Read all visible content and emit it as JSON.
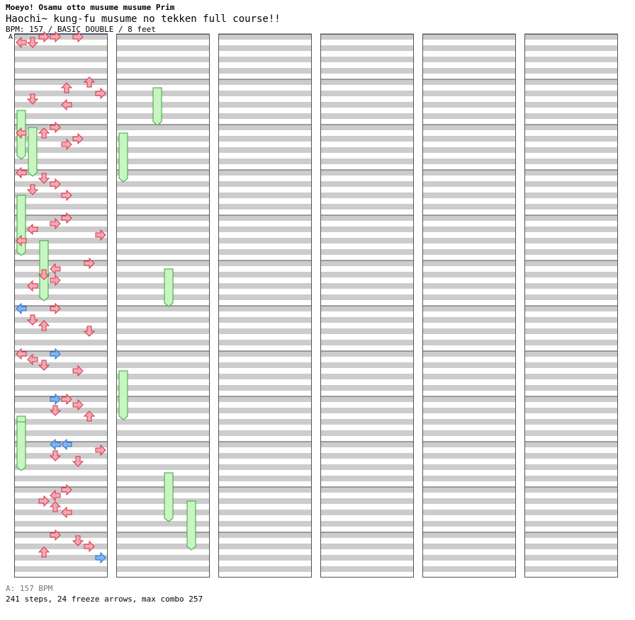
{
  "header": {
    "title": "Moeyo! Osamu otto musume musume Prim",
    "subtitle": "Haochi~ kung-fu musume no tekken full course!!",
    "info": "BPM: 157 / BASIC DOUBLE / 8 feet"
  },
  "bpm_marker": "A",
  "footer": {
    "bpm": "A: 157 BPM",
    "stats": "241 steps, 24 freeze arrows, max combo 257"
  },
  "colors": {
    "quarter": "#f7a8b2",
    "quarter_border": "#d03246",
    "eighth": "#7fb6f2",
    "eighth_border": "#2a6ccf",
    "freeze": "#c8f5c2",
    "freeze_border": "#36a53a",
    "stripe": "#cccccc",
    "grid": "#555555"
  },
  "chart_data": {
    "type": "step-chart",
    "columns": 6,
    "measures_per_column": 12,
    "lanes_per_column": 8,
    "steps_per_measure": 8,
    "lane_directions": [
      "left",
      "down",
      "up",
      "right",
      "left",
      "down",
      "up",
      "right"
    ],
    "notes": [
      [
        0,
        0,
        2,
        "right",
        "q"
      ],
      [
        0,
        0,
        3,
        "right",
        "q"
      ],
      [
        0,
        0,
        5,
        "right",
        "q"
      ],
      [
        0,
        1,
        0,
        "left",
        "q"
      ],
      [
        0,
        1,
        1,
        "down",
        "q"
      ],
      [
        1,
        0,
        6,
        "up",
        "q"
      ],
      [
        1,
        1,
        4,
        "up",
        "q"
      ],
      [
        1,
        2,
        7,
        "right",
        "q"
      ],
      [
        1,
        3,
        1,
        "down",
        "q"
      ],
      [
        1,
        4,
        4,
        "left",
        "q"
      ],
      [
        2,
        0,
        3,
        "right",
        "q"
      ],
      [
        2,
        1,
        0,
        "left",
        "q"
      ],
      [
        2,
        1,
        2,
        "up",
        "q"
      ],
      [
        2,
        2,
        5,
        "right",
        "q"
      ],
      [
        2,
        3,
        4,
        "right",
        "q"
      ],
      [
        3,
        0,
        0,
        "left",
        "q"
      ],
      [
        3,
        1,
        2,
        "down",
        "q"
      ],
      [
        3,
        2,
        3,
        "right",
        "q"
      ],
      [
        3,
        3,
        1,
        "down",
        "q"
      ],
      [
        3,
        4,
        4,
        "right",
        "q"
      ],
      [
        4,
        0,
        4,
        "right",
        "q"
      ],
      [
        4,
        1,
        3,
        "right",
        "q"
      ],
      [
        4,
        2,
        1,
        "left",
        "q"
      ],
      [
        4,
        3,
        7,
        "right",
        "q"
      ],
      [
        4,
        4,
        0,
        "left",
        "q"
      ],
      [
        5,
        0,
        6,
        "right",
        "q"
      ],
      [
        5,
        1,
        3,
        "left",
        "q"
      ],
      [
        5,
        2,
        2,
        "down",
        "q"
      ],
      [
        5,
        3,
        3,
        "right",
        "q"
      ],
      [
        5,
        4,
        1,
        "left",
        "q"
      ],
      [
        6,
        0,
        0,
        "left",
        "e"
      ],
      [
        6,
        0,
        3,
        "right",
        "q"
      ],
      [
        6,
        2,
        1,
        "down",
        "q"
      ],
      [
        6,
        3,
        2,
        "up",
        "q"
      ],
      [
        6,
        4,
        6,
        "down",
        "q"
      ],
      [
        7,
        0,
        0,
        "left",
        "q"
      ],
      [
        7,
        0,
        3,
        "right",
        "e"
      ],
      [
        7,
        1,
        1,
        "left",
        "q"
      ],
      [
        7,
        2,
        2,
        "down",
        "q"
      ],
      [
        7,
        3,
        5,
        "right",
        "q"
      ],
      [
        8,
        0,
        3,
        "right",
        "e"
      ],
      [
        8,
        0,
        4,
        "right",
        "q"
      ],
      [
        8,
        1,
        5,
        "right",
        "q"
      ],
      [
        8,
        2,
        3,
        "down",
        "q"
      ],
      [
        8,
        3,
        6,
        "up",
        "q"
      ],
      [
        9,
        0,
        3,
        "left",
        "e"
      ],
      [
        9,
        0,
        4,
        "left",
        "e"
      ],
      [
        9,
        1,
        7,
        "right",
        "q"
      ],
      [
        9,
        2,
        3,
        "down",
        "q"
      ],
      [
        9,
        3,
        5,
        "down",
        "q"
      ],
      [
        10,
        0,
        4,
        "right",
        "q"
      ],
      [
        10,
        1,
        3,
        "left",
        "q"
      ],
      [
        10,
        2,
        2,
        "right",
        "q"
      ],
      [
        10,
        3,
        3,
        "up",
        "q"
      ],
      [
        10,
        4,
        4,
        "left",
        "q"
      ],
      [
        11,
        0,
        3,
        "right",
        "q"
      ],
      [
        11,
        1,
        5,
        "down",
        "q"
      ],
      [
        11,
        2,
        6,
        "right",
        "q"
      ],
      [
        11,
        3,
        2,
        "up",
        "q"
      ],
      [
        11,
        4,
        7,
        "right",
        "e"
      ]
    ],
    "freezes": [
      [
        1,
        5,
        0,
        4,
        "q"
      ],
      [
        2,
        0,
        1,
        4,
        "q"
      ],
      [
        3,
        4,
        0,
        5,
        "q"
      ],
      [
        4,
        4,
        2,
        5,
        "q"
      ],
      [
        8,
        3,
        0,
        4,
        "q"
      ],
      [
        8,
        4,
        0,
        4,
        "q"
      ],
      [
        13,
        1,
        3,
        3,
        "q"
      ],
      [
        14,
        1,
        0,
        4,
        "q"
      ],
      [
        17,
        1,
        4,
        3,
        "q"
      ],
      [
        19,
        3,
        0,
        4,
        "q"
      ],
      [
        21,
        5,
        4,
        4,
        "q"
      ],
      [
        22,
        2,
        6,
        4,
        "q"
      ]
    ]
  }
}
